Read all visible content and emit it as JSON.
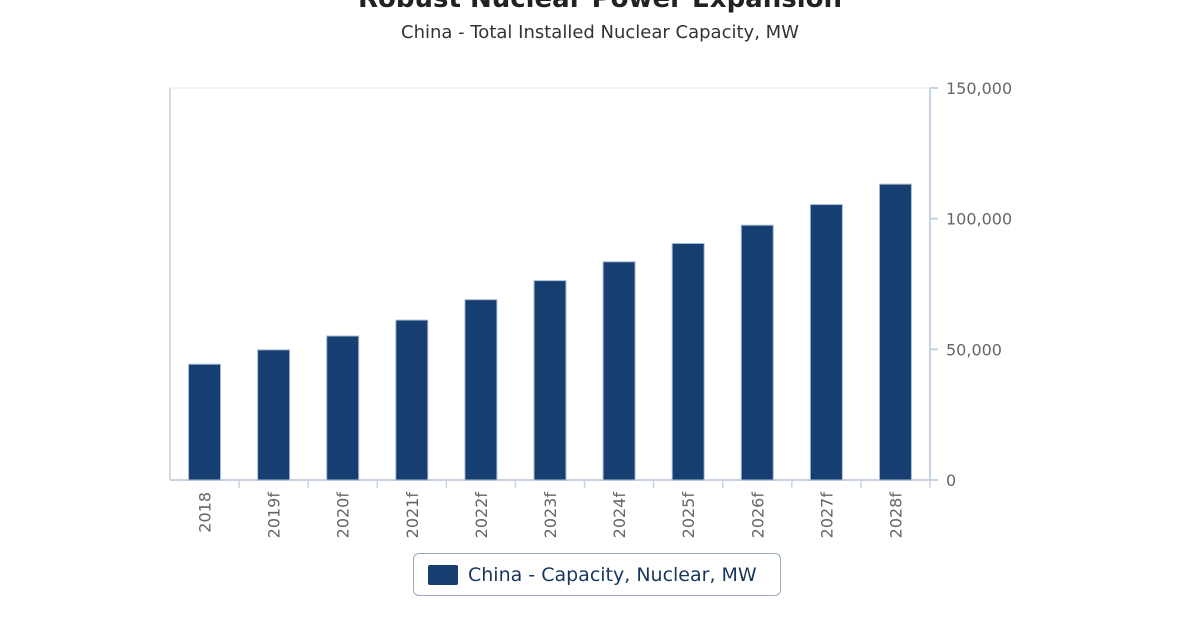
{
  "chart_data": {
    "type": "bar",
    "title": "Robust Nuclear Power Expansion",
    "subtitle": "China - Total Installed Nuclear Capacity, MW",
    "categories": [
      "2018",
      "2019f",
      "2020f",
      "2021f",
      "2022f",
      "2023f",
      "2024f",
      "2025f",
      "2026f",
      "2027f",
      "2028f"
    ],
    "series": [
      {
        "name": "China - Capacity, Nuclear, MW",
        "values": [
          44300,
          49800,
          55100,
          61200,
          69000,
          76300,
          83500,
          90500,
          97500,
          105400,
          113200
        ]
      }
    ],
    "ylim": [
      0,
      150000
    ],
    "yticks": [
      "0",
      "50,000",
      "100,000",
      "150,000"
    ],
    "y_axis_side": "right",
    "grid": false,
    "legend_position": "bottom",
    "colors": {
      "bar": "#173e70",
      "axis": "#c8d3e0",
      "tick_text": "#666666"
    }
  }
}
